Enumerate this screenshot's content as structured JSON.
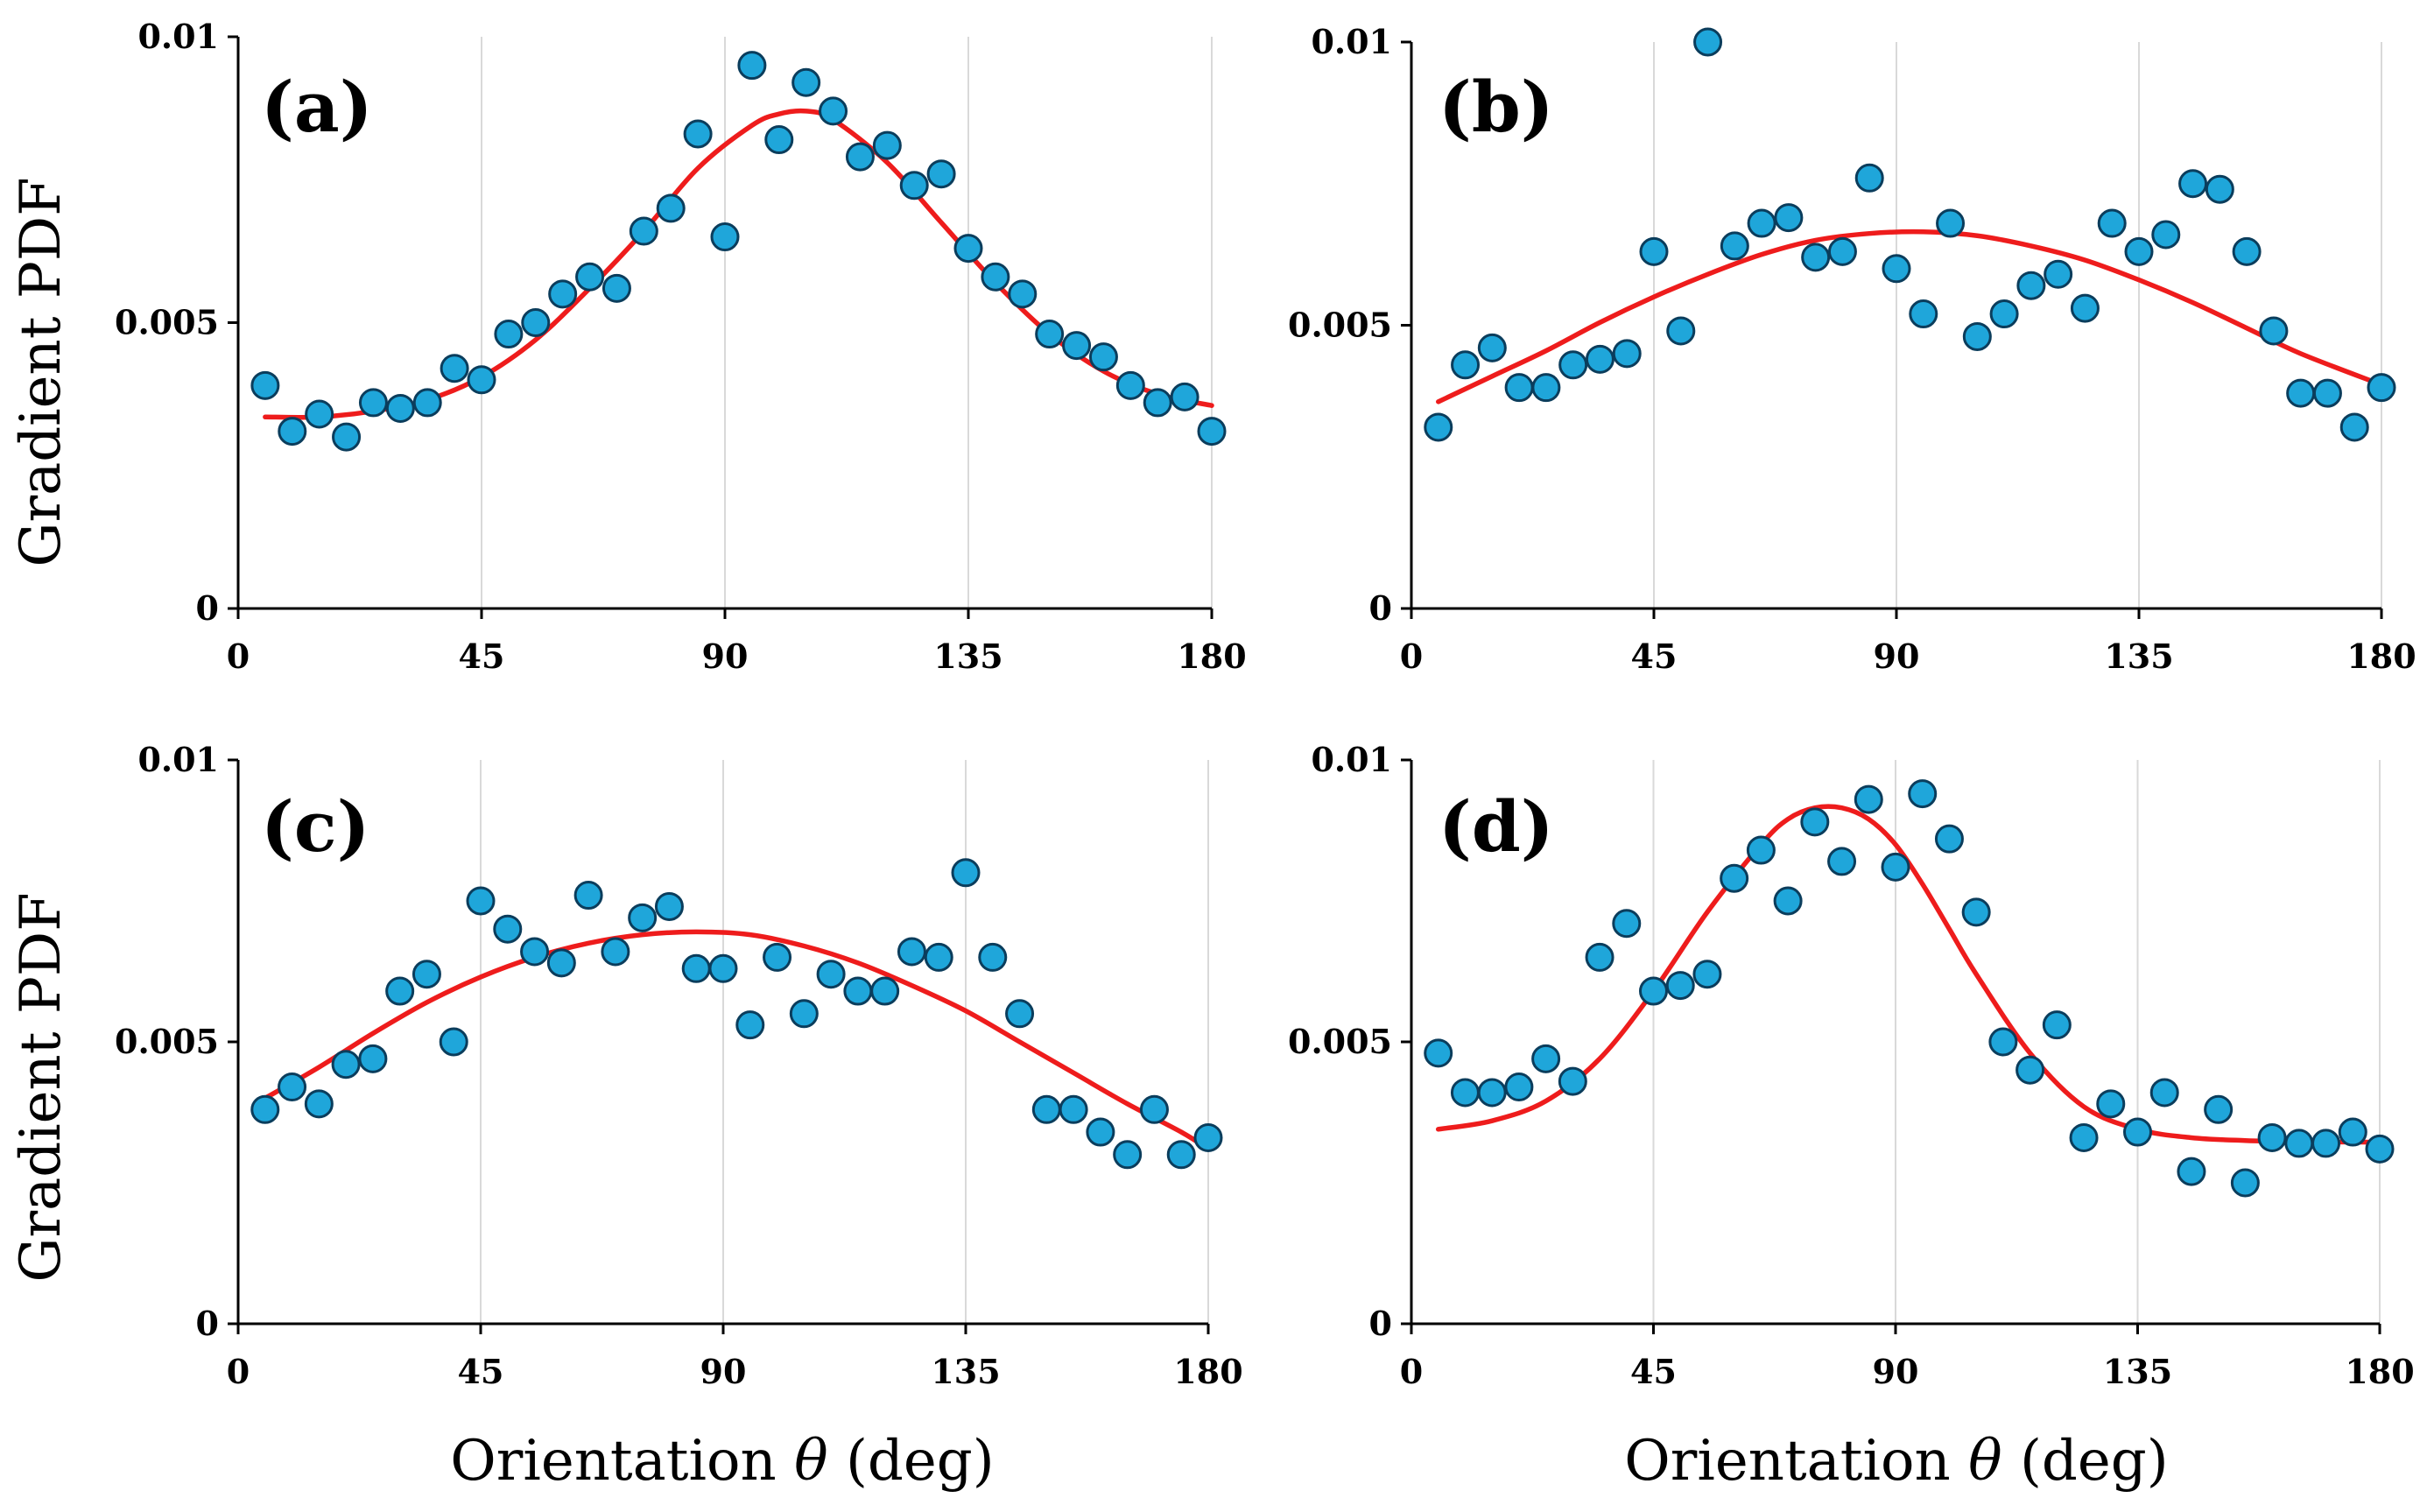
{
  "figure": {
    "y_axis_title": "Gradient PDF",
    "x_axis_title_prefix": "Orientation ",
    "x_axis_title_symbol": "θ",
    "x_axis_title_suffix": " (deg)"
  },
  "colors": {
    "points": "#1fa6da",
    "point_edge": "#0b3d5c",
    "fit": "#ee1c1c",
    "grid": "#d9d9d9"
  },
  "chart_data": [
    {
      "type": "scatter",
      "panel": "(a)",
      "xlabel": "",
      "ylabel": "Gradient PDF",
      "xlim": [
        0,
        180
      ],
      "ylim": [
        0,
        0.01
      ],
      "x_ticks": [
        0,
        45,
        90,
        135,
        180
      ],
      "x_tick_labels": [
        "0",
        "45",
        "90",
        "135",
        "180"
      ],
      "y_ticks": [
        0,
        0.005,
        0.01
      ],
      "y_tick_labels": [
        "0",
        "0.005",
        "0.01"
      ],
      "grid": "vertical",
      "series": [
        {
          "name": "data",
          "x": [
            5,
            10,
            15,
            20,
            25,
            30,
            35,
            40,
            45,
            50,
            55,
            60,
            65,
            70,
            75,
            80,
            85,
            90,
            95,
            100,
            105,
            110,
            115,
            120,
            125,
            130,
            135,
            140,
            145,
            150,
            155,
            160,
            165,
            170,
            175,
            180
          ],
          "y": [
            0.0039,
            0.0031,
            0.0034,
            0.003,
            0.0036,
            0.0035,
            0.0036,
            0.0042,
            0.004,
            0.0048,
            0.005,
            0.0055,
            0.0058,
            0.0056,
            0.0066,
            0.007,
            0.0083,
            0.0065,
            0.0095,
            0.0082,
            0.0092,
            0.0087,
            0.0079,
            0.0081,
            0.0074,
            0.0076,
            0.0063,
            0.0058,
            0.0055,
            0.0048,
            0.0046,
            0.0044,
            0.0039,
            0.0036,
            0.0037,
            0.0031
          ]
        },
        {
          "name": "fit",
          "x": [
            5,
            15,
            25,
            35,
            45,
            55,
            65,
            75,
            85,
            95,
            100,
            105,
            110,
            120,
            130,
            140,
            150,
            160,
            170,
            180
          ],
          "y": [
            0.00335,
            0.00335,
            0.00345,
            0.00365,
            0.00405,
            0.0047,
            0.0056,
            0.0066,
            0.0077,
            0.00845,
            0.00865,
            0.0087,
            0.00855,
            0.0078,
            0.00675,
            0.0057,
            0.0048,
            0.00415,
            0.00375,
            0.00355
          ]
        }
      ]
    },
    {
      "type": "scatter",
      "panel": "(b)",
      "xlabel": "",
      "ylabel": "",
      "xlim": [
        0,
        180
      ],
      "ylim": [
        0,
        0.01
      ],
      "x_ticks": [
        0,
        45,
        90,
        135,
        180
      ],
      "x_tick_labels": [
        "0",
        "45",
        "90",
        "135",
        "180"
      ],
      "y_ticks": [
        0,
        0.005,
        0.01
      ],
      "y_tick_labels": [
        "0",
        "0.005",
        "0.01"
      ],
      "grid": "vertical",
      "series": [
        {
          "name": "data",
          "x": [
            5,
            10,
            15,
            20,
            25,
            30,
            35,
            40,
            45,
            50,
            55,
            60,
            65,
            70,
            75,
            80,
            85,
            90,
            95,
            100,
            105,
            110,
            115,
            120,
            125,
            130,
            135,
            140,
            145,
            150,
            155,
            160,
            165,
            170,
            175,
            180
          ],
          "y": [
            0.0032,
            0.0043,
            0.0046,
            0.0039,
            0.0039,
            0.0043,
            0.0044,
            0.0045,
            0.0063,
            0.0049,
            0.01,
            0.0064,
            0.0068,
            0.0069,
            0.0062,
            0.0063,
            0.0076,
            0.006,
            0.0052,
            0.0068,
            0.0048,
            0.0052,
            0.0057,
            0.0059,
            0.0053,
            0.0068,
            0.0063,
            0.0066,
            0.0075,
            0.0074,
            0.0063,
            0.0049,
            0.0038,
            0.0038,
            0.0032,
            0.0039
          ]
        },
        {
          "name": "fit",
          "x": [
            5,
            15,
            25,
            35,
            45,
            55,
            65,
            75,
            85,
            95,
            105,
            115,
            125,
            135,
            145,
            155,
            165,
            180
          ],
          "y": [
            0.00365,
            0.0041,
            0.00455,
            0.00505,
            0.0055,
            0.0059,
            0.00625,
            0.0065,
            0.00662,
            0.00665,
            0.00658,
            0.0064,
            0.00615,
            0.0058,
            0.0054,
            0.00495,
            0.0045,
            0.00395
          ]
        }
      ]
    },
    {
      "type": "scatter",
      "panel": "(c)",
      "xlabel": "Orientation θ (deg)",
      "ylabel": "Gradient PDF",
      "xlim": [
        0,
        180
      ],
      "ylim": [
        0,
        0.01
      ],
      "x_ticks": [
        0,
        45,
        90,
        135,
        180
      ],
      "x_tick_labels": [
        "0",
        "45",
        "90",
        "135",
        "180"
      ],
      "y_ticks": [
        0,
        0.005,
        0.01
      ],
      "y_tick_labels": [
        "0",
        "0.005",
        "0.01"
      ],
      "grid": "vertical",
      "series": [
        {
          "name": "data",
          "x": [
            5,
            10,
            15,
            20,
            25,
            30,
            35,
            40,
            45,
            50,
            55,
            60,
            65,
            70,
            75,
            80,
            85,
            90,
            95,
            100,
            105,
            110,
            115,
            120,
            125,
            130,
            135,
            140,
            145,
            150,
            155,
            160,
            165,
            170,
            175,
            180
          ],
          "y": [
            0.0038,
            0.0042,
            0.0039,
            0.0046,
            0.0047,
            0.0059,
            0.0062,
            0.005,
            0.0075,
            0.007,
            0.0066,
            0.0064,
            0.0076,
            0.0066,
            0.0072,
            0.0074,
            0.0063,
            0.0063,
            0.0053,
            0.0065,
            0.0055,
            0.0062,
            0.0059,
            0.0059,
            0.0066,
            0.0065,
            0.008,
            0.0065,
            0.0055,
            0.0038,
            0.0038,
            0.0034,
            0.003,
            0.0038,
            0.003,
            0.0033
          ]
        },
        {
          "name": "fit",
          "x": [
            5,
            15,
            25,
            35,
            45,
            55,
            65,
            75,
            85,
            95,
            105,
            115,
            125,
            135,
            145,
            155,
            165,
            175,
            180
          ],
          "y": [
            0.004,
            0.00455,
            0.00515,
            0.0057,
            0.00615,
            0.0065,
            0.00675,
            0.0069,
            0.00695,
            0.0069,
            0.0067,
            0.0064,
            0.006,
            0.00555,
            0.005,
            0.00445,
            0.0039,
            0.0034,
            0.0031
          ]
        }
      ]
    },
    {
      "type": "scatter",
      "panel": "(d)",
      "xlabel": "Orientation θ (deg)",
      "ylabel": "",
      "xlim": [
        0,
        180
      ],
      "ylim": [
        0,
        0.01
      ],
      "x_ticks": [
        0,
        45,
        90,
        135,
        180
      ],
      "x_tick_labels": [
        "0",
        "45",
        "90",
        "135",
        "180"
      ],
      "y_ticks": [
        0,
        0.005,
        0.01
      ],
      "y_tick_labels": [
        "0",
        "0.005",
        "0.01"
      ],
      "grid": "vertical",
      "series": [
        {
          "name": "data",
          "x": [
            5,
            10,
            15,
            20,
            25,
            30,
            35,
            40,
            45,
            50,
            55,
            60,
            65,
            70,
            75,
            80,
            85,
            90,
            95,
            100,
            105,
            110,
            115,
            120,
            125,
            130,
            135,
            140,
            145,
            150,
            155,
            160,
            165,
            170,
            175,
            180
          ],
          "y": [
            0.0048,
            0.0041,
            0.0041,
            0.0042,
            0.0047,
            0.0043,
            0.0065,
            0.0071,
            0.0059,
            0.006,
            0.0062,
            0.0079,
            0.0084,
            0.0075,
            0.0089,
            0.0082,
            0.0093,
            0.0081,
            0.0094,
            0.0086,
            0.0073,
            0.005,
            0.0045,
            0.0053,
            0.0033,
            0.0039,
            0.0034,
            0.0041,
            0.0027,
            0.0038,
            0.0025,
            0.0033,
            0.0032,
            0.0032,
            0.0034,
            0.0031
          ]
        },
        {
          "name": "fit",
          "x": [
            5,
            15,
            25,
            35,
            45,
            55,
            65,
            70,
            75,
            80,
            85,
            90,
            95,
            100,
            105,
            115,
            125,
            135,
            145,
            155,
            165,
            180
          ],
          "y": [
            0.00345,
            0.0036,
            0.00395,
            0.0047,
            0.0059,
            0.0073,
            0.0085,
            0.00895,
            0.00915,
            0.00915,
            0.00895,
            0.0085,
            0.0078,
            0.007,
            0.0062,
            0.0048,
            0.00385,
            0.00345,
            0.0033,
            0.00325,
            0.00323,
            0.00322
          ]
        }
      ]
    }
  ]
}
